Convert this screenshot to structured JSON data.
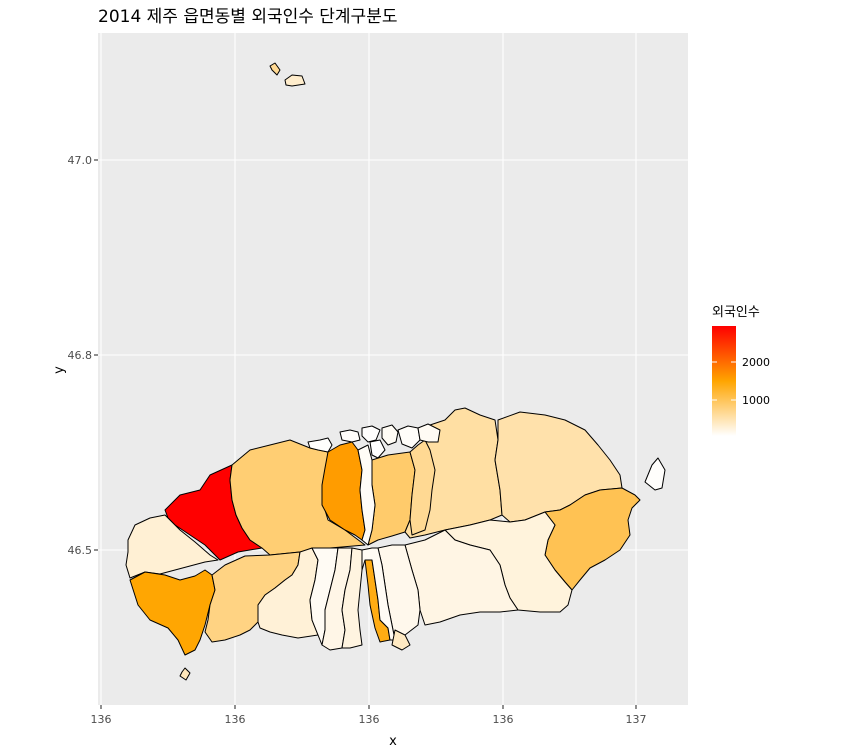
{
  "title": "2014 제주 읍면동별 외국인수 단계구분도",
  "x_label": "x",
  "y_label": "y",
  "legend": {
    "title": "외국인수",
    "ticks": [
      "2000",
      "1000"
    ],
    "colors": {
      "low": "#ffffff",
      "mid": "#ffa500",
      "high": "#ff0000"
    }
  },
  "colors": {
    "panel_bg": "#ebebeb",
    "grid": "#ffffff",
    "border": "#000000"
  },
  "chart_data": {
    "type": "choropleth",
    "title": "2014 제주 읍면동별 외국인수 단계구분도",
    "xlabel": "x",
    "ylabel": "y",
    "x_ticks": [
      "136",
      "136",
      "136",
      "136",
      "137"
    ],
    "y_ticks": [
      "47.0",
      "46.8",
      "46.5"
    ],
    "fill_variable": "외국인수",
    "legend_breaks": [
      2000,
      1000
    ],
    "region_values": [
      {
        "region": "r1",
        "value": 3200
      },
      {
        "region": "r2",
        "value": 300
      },
      {
        "region": "r3",
        "value": 900
      },
      {
        "region": "r4",
        "value": 1600
      },
      {
        "region": "r5",
        "value": 800
      },
      {
        "region": "r6",
        "value": 1700
      },
      {
        "region": "r7",
        "value": 950
      },
      {
        "region": "r8",
        "value": 80
      },
      {
        "region": "r9",
        "value": 600
      },
      {
        "region": "r10",
        "value": 550
      },
      {
        "region": "r11",
        "value": 1100
      },
      {
        "region": "r12",
        "value": 250
      },
      {
        "region": "r13",
        "value": 200
      },
      {
        "region": "r14",
        "value": 150
      },
      {
        "region": "r15",
        "value": 280
      },
      {
        "region": "r16",
        "value": 100
      },
      {
        "region": "r17",
        "value": 180
      },
      {
        "region": "r18",
        "value": 220
      },
      {
        "region": "r19",
        "value": 1500
      },
      {
        "region": "r20",
        "value": 100
      },
      {
        "region": "r21",
        "value": 450
      },
      {
        "region": "r22",
        "value": 350
      },
      {
        "region": "r23",
        "value": 700
      },
      {
        "region": "r24",
        "value": 50
      },
      {
        "region": "r25",
        "value": 400
      },
      {
        "region": "r26",
        "value": 700
      },
      {
        "region": "r27",
        "value": 50
      },
      {
        "region": "r28",
        "value": 60
      },
      {
        "region": "r29",
        "value": 40
      },
      {
        "region": "r30",
        "value": 90
      },
      {
        "region": "r31",
        "value": 70
      },
      {
        "region": "r32",
        "value": 100
      },
      {
        "region": "r33",
        "value": 30
      }
    ]
  }
}
